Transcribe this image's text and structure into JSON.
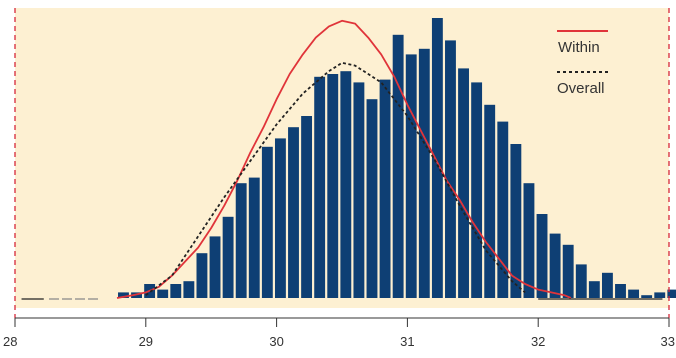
{
  "chart_data": {
    "type": "bar",
    "xlim": [
      28,
      33
    ],
    "ylim": [
      0,
      100
    ],
    "x_ticks": [
      "28",
      "29",
      "30",
      "31",
      "32",
      "33"
    ],
    "grid": false,
    "legend_position": "top-right",
    "colors": {
      "plot_background": "#FDF0D2",
      "bars": "#0E3F74",
      "within_curve": "#E0343A",
      "overall_curve": "#222222",
      "spec_limits": "#D6283A",
      "axis": "#333333"
    },
    "bins": {
      "start": 28.78,
      "width": 0.1,
      "counts": [
        2,
        2,
        5,
        3,
        5,
        6,
        16,
        22,
        29,
        41,
        43,
        54,
        57,
        61,
        65,
        79,
        80,
        81,
        77,
        71,
        78,
        94,
        87,
        89,
        100,
        92,
        82,
        77,
        69,
        63,
        55,
        41,
        30,
        23,
        19,
        12,
        6,
        9,
        5,
        3,
        1,
        2,
        3
      ]
    },
    "series": [
      {
        "name": "Within",
        "kind": "line",
        "dash": "solid",
        "x": [
          28.78,
          28.9,
          29.0,
          29.1,
          29.2,
          29.3,
          29.4,
          29.5,
          29.6,
          29.7,
          29.8,
          29.9,
          30.0,
          30.1,
          30.2,
          30.3,
          30.4,
          30.5,
          30.6,
          30.7,
          30.8,
          30.9,
          31.0,
          31.1,
          31.2,
          31.3,
          31.4,
          31.5,
          31.6,
          31.7,
          31.8,
          31.9,
          32.0,
          32.1,
          32.2,
          32.25
        ],
        "y": [
          0,
          1,
          2,
          4,
          8,
          13,
          18,
          25,
          33,
          42,
          52,
          61,
          71,
          80,
          87,
          93,
          97,
          99,
          98,
          93,
          87,
          79,
          69,
          60,
          51,
          42,
          35,
          27,
          20,
          14,
          8,
          5,
          3,
          2,
          1,
          0
        ]
      },
      {
        "name": "Overall",
        "kind": "line",
        "dash": "dashed",
        "x": [
          29.0,
          29.2,
          29.4,
          29.6,
          29.8,
          30.0,
          30.2,
          30.4,
          30.5,
          30.6,
          30.8,
          31.0,
          31.2,
          31.4,
          31.6,
          31.8,
          31.9
        ],
        "y": [
          1,
          8,
          22,
          36,
          49,
          62,
          73,
          81,
          84,
          83,
          77,
          65,
          50,
          33,
          17,
          6,
          2
        ]
      }
    ],
    "dash_segments": [
      {
        "x": [
          28.05,
          28.22
        ],
        "style": "solid"
      },
      {
        "x": [
          28.26,
          28.65
        ],
        "style": "dashed"
      },
      {
        "x": [
          32.0,
          32.95
        ],
        "style": "solid"
      }
    ]
  }
}
